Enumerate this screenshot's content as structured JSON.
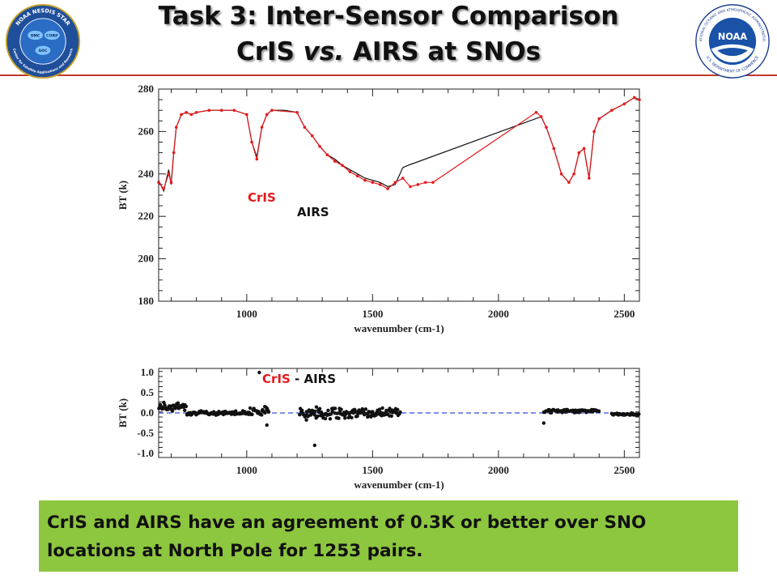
{
  "slide": {
    "title_line1": "Task 3: Inter-Sensor Comparison",
    "title_line2_a": "CrIS ",
    "title_line2_b": "vs.",
    "title_line2_c": " AIRS at SNOs",
    "summary": "CrIS and AIRS have an agreement of 0.3K  or better over SNO locations at North Pole for 1253 pairs."
  },
  "logos": {
    "left": {
      "ring_top": "NOAA NESDIS STAR",
      "ring_bottom": "Center for Satellite Applications and Research",
      "labels": [
        "SMC",
        "CORP",
        "SOC"
      ]
    },
    "right": {
      "ring_top": "NATIONAL OCEANIC AND ATMOSPHERIC ADMINISTRATION",
      "ring_bottom": "U.S. DEPARTMENT OF COMMERCE",
      "text": "NOAA"
    }
  },
  "colors": {
    "cris": "#e41a1c",
    "airs": "#111111",
    "zero_line": "#3a4bd8",
    "box": "#8dc63f",
    "rule": "#c0392b"
  },
  "chart_data": [
    {
      "type": "line",
      "xlabel": "wavenumber (cm-1)",
      "ylabel": "BT (k)",
      "xlim": [
        650,
        2560
      ],
      "ylim": [
        180,
        280
      ],
      "xticks": [
        1000,
        1500,
        2000,
        2500
      ],
      "yticks": [
        180,
        200,
        220,
        240,
        260,
        280
      ],
      "series": [
        {
          "name": "AIRS",
          "x": [
            650,
            670,
            690,
            700,
            710,
            720,
            740,
            760,
            780,
            800,
            850,
            900,
            950,
            1000,
            1020,
            1040,
            1060,
            1080,
            1100,
            1150,
            1200,
            1230,
            1260,
            1290,
            1320,
            1350,
            1380,
            1410,
            1440,
            1470,
            1500,
            1530,
            1560,
            1590,
            1620,
            1640,
            2170,
            2190,
            2220,
            2250,
            2280,
            2300,
            2320,
            2340,
            2360,
            2380,
            2400,
            2450,
            2500,
            2540,
            2560
          ],
          "values": [
            237,
            232,
            242,
            235,
            250,
            262,
            268,
            269,
            268,
            269,
            270,
            270,
            270,
            268,
            255,
            248,
            262,
            268,
            270,
            270,
            269,
            262,
            258,
            253,
            249,
            247,
            244,
            242,
            240,
            238,
            237,
            236,
            234,
            235,
            243,
            244,
            267,
            262,
            252,
            240,
            236,
            240,
            250,
            252,
            238,
            260,
            266,
            270,
            273,
            276,
            275
          ]
        },
        {
          "name": "CrIS",
          "x": [
            650,
            670,
            690,
            700,
            710,
            720,
            740,
            760,
            780,
            800,
            850,
            900,
            950,
            1000,
            1020,
            1040,
            1060,
            1080,
            1100,
            1200,
            1230,
            1260,
            1290,
            1320,
            1350,
            1380,
            1410,
            1440,
            1470,
            1500,
            1530,
            1560,
            1590,
            1620,
            1650,
            1680,
            1710,
            1740,
            2150,
            2170,
            2190,
            2220,
            2250,
            2280,
            2300,
            2320,
            2340,
            2360,
            2380,
            2400,
            2450,
            2500,
            2540,
            2560
          ],
          "values": [
            236,
            233,
            240,
            236,
            250,
            262,
            268,
            269,
            268,
            269,
            270,
            270,
            270,
            268,
            255,
            247,
            262,
            268,
            270,
            269,
            262,
            258,
            253,
            249,
            246,
            244,
            241,
            239,
            237,
            236,
            235,
            233,
            236,
            238,
            234,
            235,
            236,
            236,
            269,
            267,
            262,
            252,
            240,
            236,
            240,
            250,
            252,
            238,
            260,
            266,
            270,
            273,
            276,
            275
          ]
        }
      ],
      "annotations": [
        "CrIS",
        "AIRS"
      ]
    },
    {
      "type": "scatter",
      "xlabel": "wavenumber (cm-1)",
      "ylabel": "BT (k)",
      "xlim": [
        650,
        2560
      ],
      "ylim": [
        -1.1,
        1.1
      ],
      "xticks": [
        1000,
        1500,
        2000,
        2500
      ],
      "yticks": [
        1.0,
        0.5,
        0.0,
        -0.5,
        -1.0
      ],
      "reference_line": 0.0,
      "segments": [
        {
          "x_start": 650,
          "x_end": 760,
          "center": 0.15,
          "spread": 0.12
        },
        {
          "x_start": 760,
          "x_end": 1000,
          "center": 0.0,
          "spread": 0.06
        },
        {
          "x_start": 1000,
          "x_end": 1090,
          "center": 0.05,
          "spread": 0.15
        },
        {
          "x_start": 1210,
          "x_end": 1420,
          "center": 0.0,
          "spread": 0.18
        },
        {
          "x_start": 1420,
          "x_end": 1610,
          "center": 0.0,
          "spread": 0.14
        },
        {
          "x_start": 2180,
          "x_end": 2400,
          "center": 0.05,
          "spread": 0.05
        },
        {
          "x_start": 2450,
          "x_end": 2560,
          "center": -0.03,
          "spread": 0.03
        }
      ],
      "outliers": [
        {
          "x": 1050,
          "y": 1.0
        },
        {
          "x": 1270,
          "y": -0.8
        },
        {
          "x": 1080,
          "y": -0.3
        },
        {
          "x": 2180,
          "y": -0.25
        }
      ],
      "annotation": {
        "part1": "CrIS",
        "part2": " - AIRS"
      }
    }
  ]
}
